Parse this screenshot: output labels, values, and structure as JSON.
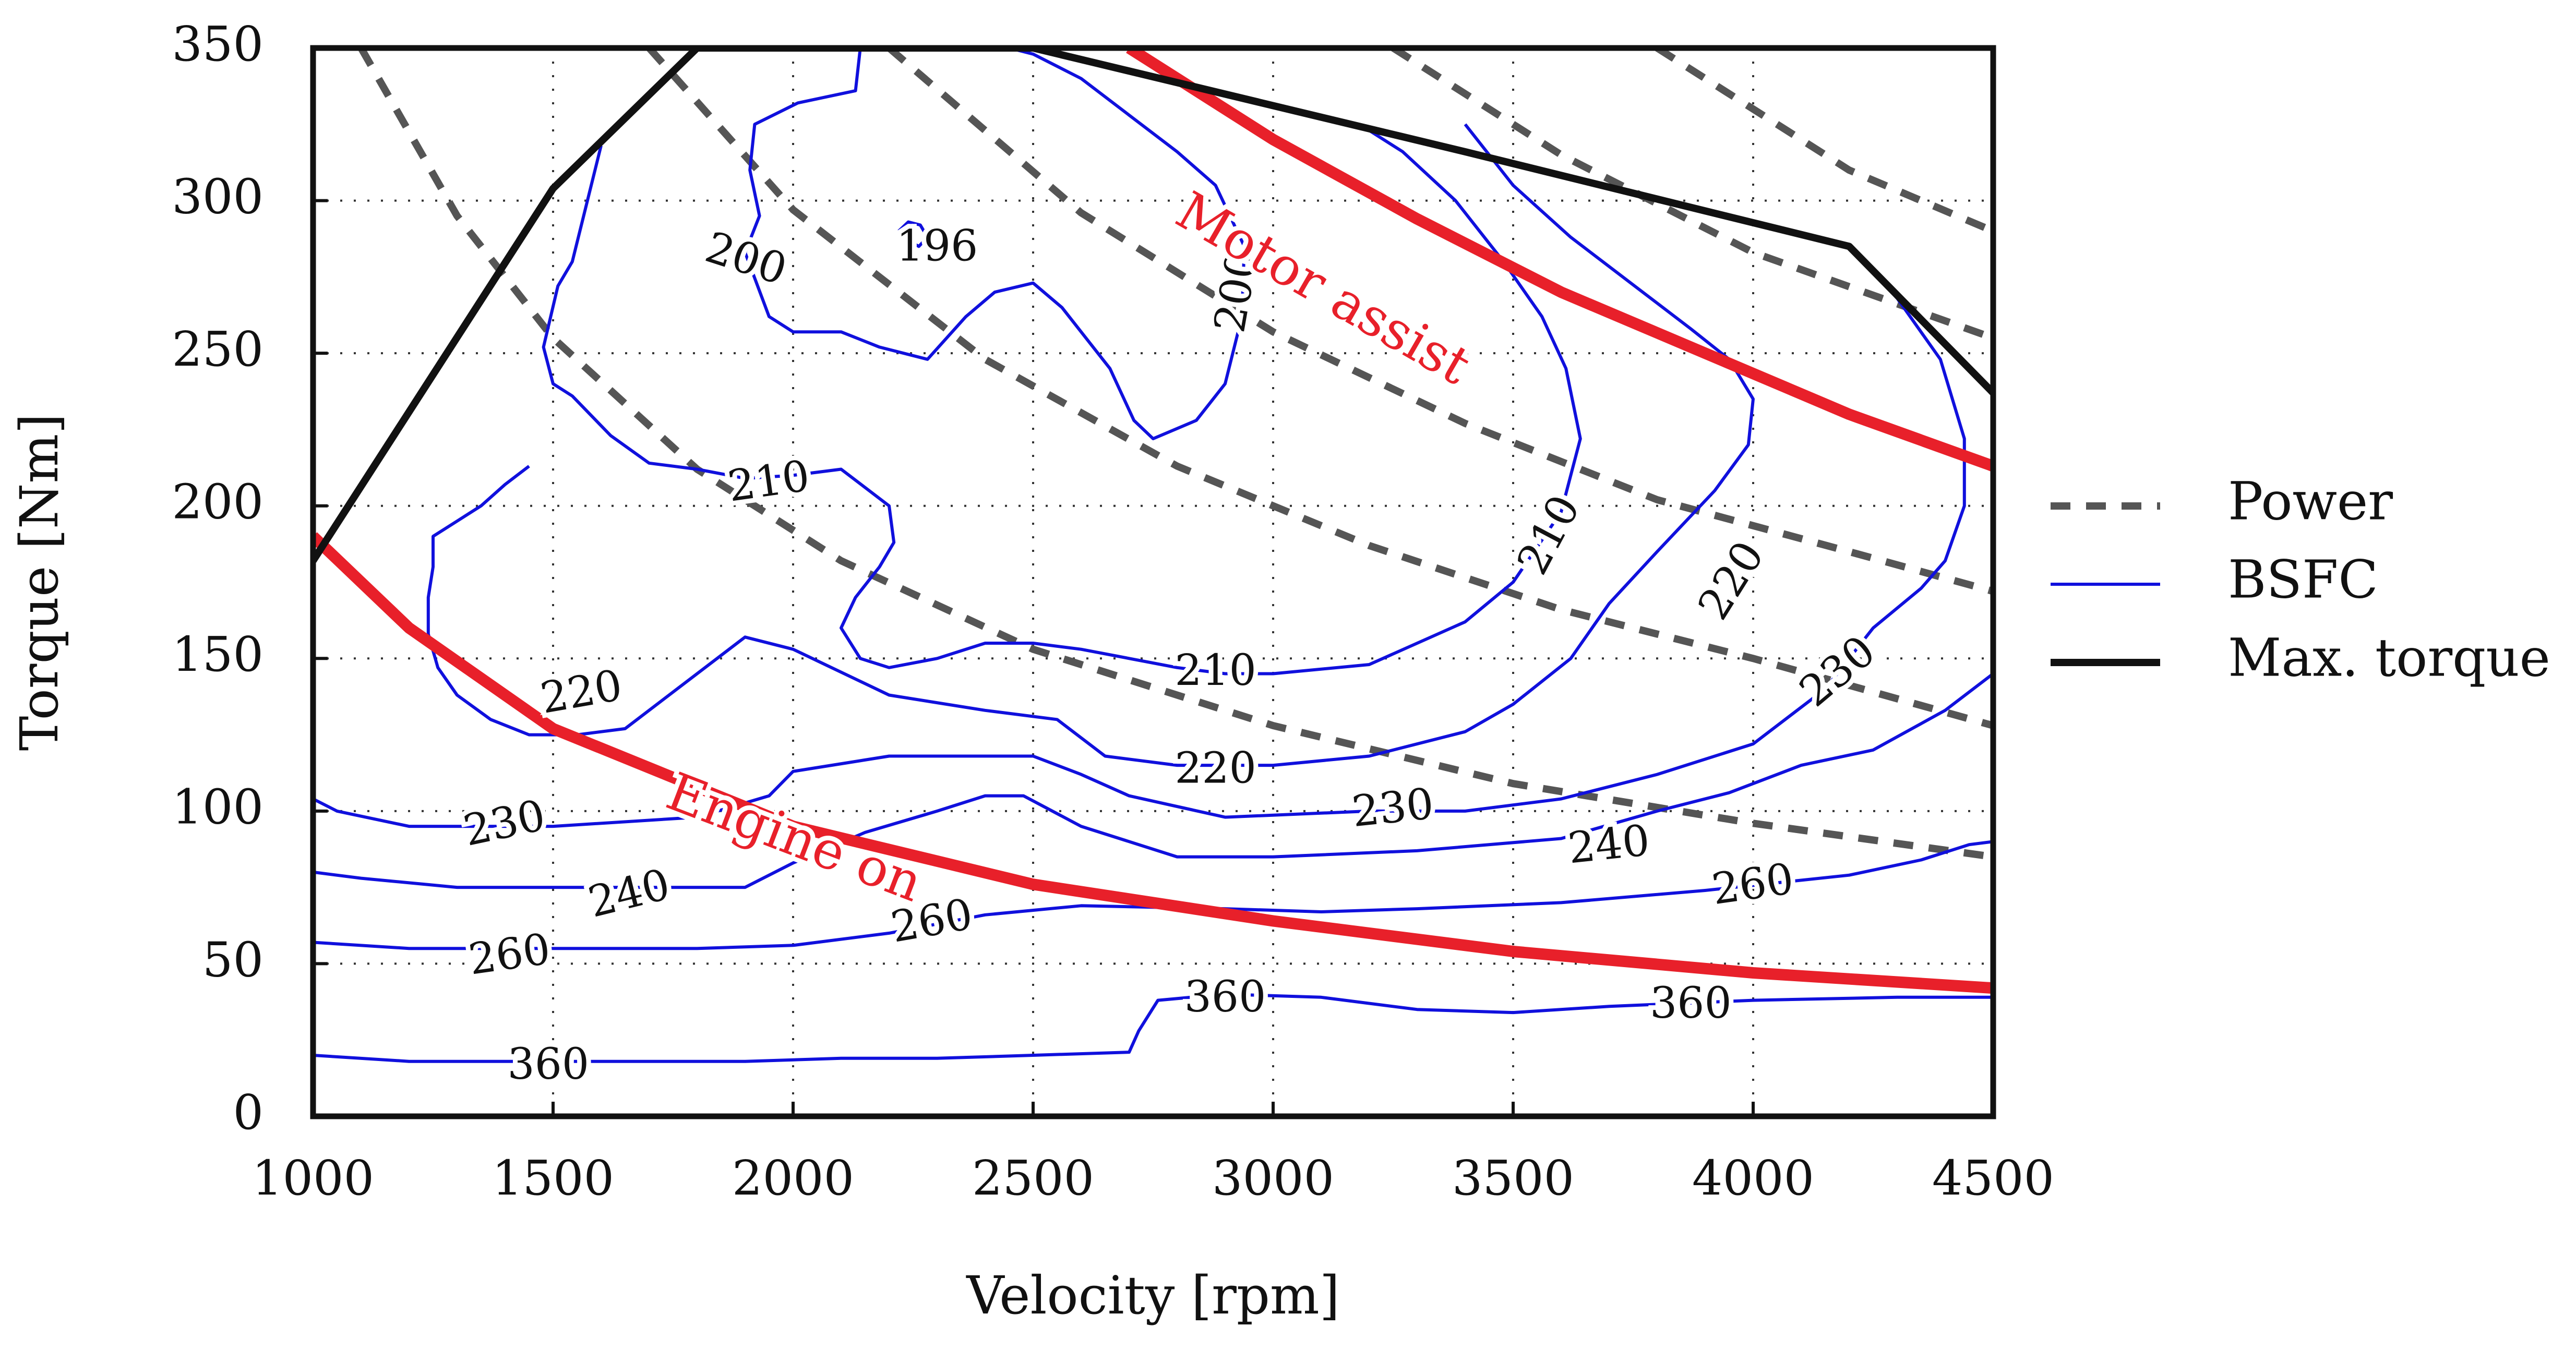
{
  "chart_data": {
    "type": "line",
    "xlabel": "Velocity [rpm]",
    "ylabel": "Torque [Nm]",
    "xlim": [
      1000,
      4500
    ],
    "ylim": [
      0,
      350
    ],
    "xticks": [
      "1000",
      "1500",
      "2000",
      "2500",
      "3000",
      "3500",
      "4000",
      "4500"
    ],
    "yticks": [
      "0",
      "50",
      "100",
      "150",
      "200",
      "250",
      "300",
      "350"
    ],
    "grid": true,
    "legend_position": "right",
    "legend": [
      {
        "label": "Power",
        "style": "dashed",
        "color": "#555555"
      },
      {
        "label": "BSFC",
        "style": "solid",
        "color": "#1010dd"
      },
      {
        "label": "Max. torque",
        "style": "solid",
        "color": "#111111"
      }
    ],
    "colors": {
      "power": "#555555",
      "bsfc": "#1010dd",
      "max_torque": "#111111",
      "strategy": "#e8202a"
    },
    "max_torque": [
      [
        1000,
        182
      ],
      [
        1500,
        304
      ],
      [
        1800,
        350
      ],
      [
        2500,
        350
      ],
      [
        3400,
        316
      ],
      [
        4200,
        285
      ],
      [
        4500,
        237
      ]
    ],
    "strategy_curves": [
      {
        "label": "Motor assist",
        "points": [
          [
            2700,
            350
          ],
          [
            3000,
            320
          ],
          [
            3300,
            294
          ],
          [
            3600,
            270
          ],
          [
            3900,
            250
          ],
          [
            4200,
            230
          ],
          [
            4500,
            213
          ]
        ]
      },
      {
        "label": "Engine on",
        "points": [
          [
            1000,
            190
          ],
          [
            1200,
            160
          ],
          [
            1500,
            127
          ],
          [
            2000,
            95
          ],
          [
            2500,
            76
          ],
          [
            3000,
            64
          ],
          [
            3500,
            54
          ],
          [
            4000,
            47
          ],
          [
            4500,
            42
          ]
        ]
      }
    ],
    "power_curves": [
      [
        [
          1100,
          350
        ],
        [
          1300,
          295
        ],
        [
          1500,
          255
        ],
        [
          1800,
          212
        ],
        [
          2100,
          182
        ],
        [
          2500,
          153
        ],
        [
          3000,
          128
        ],
        [
          3500,
          109
        ],
        [
          4000,
          96
        ],
        [
          4500,
          85
        ]
      ],
      [
        [
          1700,
          350
        ],
        [
          2000,
          297
        ],
        [
          2400,
          248
        ],
        [
          2800,
          213
        ],
        [
          3200,
          187
        ],
        [
          3600,
          166
        ],
        [
          4000,
          150
        ],
        [
          4500,
          128
        ]
      ],
      [
        [
          2200,
          350
        ],
        [
          2600,
          296
        ],
        [
          3000,
          257
        ],
        [
          3400,
          227
        ],
        [
          3800,
          202
        ],
        [
          4200,
          185
        ],
        [
          4500,
          172
        ]
      ],
      [
        [
          3250,
          350
        ],
        [
          3600,
          315
        ],
        [
          4000,
          283
        ],
        [
          4500,
          255
        ]
      ],
      [
        [
          3800,
          350
        ],
        [
          4200,
          310
        ],
        [
          4500,
          290
        ]
      ]
    ],
    "bsfc_contours": [
      {
        "label": "196",
        "label_at": [
          2300,
          284
        ],
        "points": [
          [
            2220,
            290
          ],
          [
            2240,
            293
          ],
          [
            2265,
            292
          ],
          [
            2280,
            288
          ],
          [
            2262,
            285
          ],
          [
            2238,
            287
          ],
          [
            2220,
            290
          ]
        ]
      },
      {
        "label": "200",
        "label_at": [
          1900,
          280
        ],
        "points": [
          [
            2140,
            350
          ],
          [
            2130,
            336
          ],
          [
            2010,
            332
          ],
          [
            1920,
            325
          ],
          [
            1910,
            310
          ],
          [
            1930,
            295
          ],
          [
            1900,
            283
          ],
          [
            1950,
            262
          ],
          [
            2000,
            257
          ],
          [
            2100,
            257
          ],
          [
            2180,
            252
          ],
          [
            2280,
            248
          ],
          [
            2360,
            262
          ],
          [
            2420,
            270
          ],
          [
            2500,
            273
          ],
          [
            2560,
            265
          ],
          [
            2660,
            245
          ],
          [
            2710,
            228
          ],
          [
            2750,
            222
          ],
          [
            2840,
            228
          ],
          [
            2900,
            240
          ],
          [
            2935,
            262
          ],
          [
            2940,
            285
          ],
          [
            2880,
            305
          ],
          [
            2800,
            316
          ],
          [
            2700,
            328
          ],
          [
            2600,
            340
          ],
          [
            2500,
            348
          ],
          [
            2450,
            350
          ]
        ]
      },
      {
        "label": "210",
        "label_at": [
          2000,
          205
        ],
        "points": [
          [
            1600,
            318
          ],
          [
            1540,
            280
          ],
          [
            1510,
            272
          ],
          [
            1480,
            252
          ],
          [
            1500,
            240
          ],
          [
            1520,
            238
          ],
          [
            1540,
            236
          ],
          [
            1620,
            223
          ],
          [
            1700,
            214
          ],
          [
            1800,
            212
          ],
          [
            1900,
            209
          ],
          [
            2000,
            210
          ],
          [
            2100,
            212
          ],
          [
            2200,
            200
          ],
          [
            2210,
            188
          ],
          [
            2180,
            180
          ],
          [
            2130,
            170
          ],
          [
            2100,
            160
          ],
          [
            2140,
            150
          ],
          [
            2200,
            147
          ],
          [
            2300,
            150
          ],
          [
            2400,
            155
          ],
          [
            2500,
            155
          ],
          [
            2600,
            153
          ],
          [
            2800,
            147
          ],
          [
            2900,
            145
          ],
          [
            3000,
            145
          ],
          [
            3200,
            148
          ],
          [
            3400,
            162
          ],
          [
            3500,
            175
          ],
          [
            3600,
            198
          ],
          [
            3640,
            222
          ],
          [
            3610,
            245
          ],
          [
            3560,
            262
          ],
          [
            3480,
            280
          ],
          [
            3380,
            300
          ],
          [
            3270,
            316
          ],
          [
            3180,
            325
          ]
        ]
      },
      {
        "label": "220",
        "label_at": [
          1700,
          138
        ],
        "points": [
          [
            1450,
            213
          ],
          [
            1400,
            207
          ],
          [
            1350,
            200
          ],
          [
            1300,
            195
          ],
          [
            1250,
            190
          ],
          [
            1250,
            180
          ],
          [
            1240,
            170
          ],
          [
            1240,
            158
          ],
          [
            1260,
            147
          ],
          [
            1300,
            138
          ],
          [
            1370,
            130
          ],
          [
            1450,
            125
          ],
          [
            1550,
            125
          ],
          [
            1650,
            127
          ],
          [
            1800,
            145
          ],
          [
            1900,
            157
          ],
          [
            2000,
            153
          ],
          [
            2200,
            138
          ],
          [
            2400,
            133
          ],
          [
            2550,
            130
          ],
          [
            2650,
            118
          ],
          [
            2800,
            115
          ],
          [
            3000,
            115
          ],
          [
            3200,
            118
          ],
          [
            3400,
            126
          ],
          [
            3500,
            135
          ],
          [
            3620,
            150
          ],
          [
            3700,
            168
          ],
          [
            3800,
            185
          ],
          [
            3920,
            205
          ],
          [
            3990,
            220
          ],
          [
            4000,
            235
          ],
          [
            3950,
            248
          ],
          [
            3870,
            258
          ],
          [
            3770,
            270
          ],
          [
            3620,
            288
          ],
          [
            3500,
            305
          ],
          [
            3400,
            325
          ]
        ]
      },
      {
        "label": "230",
        "label_at": [
          3250,
          100
        ],
        "points": [
          [
            1000,
            104
          ],
          [
            1050,
            100
          ],
          [
            1200,
            95
          ],
          [
            1500,
            95
          ],
          [
            1800,
            98
          ],
          [
            1950,
            105
          ],
          [
            2000,
            113
          ],
          [
            2200,
            118
          ],
          [
            2500,
            118
          ],
          [
            2600,
            112
          ],
          [
            2700,
            105
          ],
          [
            2900,
            98
          ],
          [
            3200,
            100
          ],
          [
            3400,
            100
          ],
          [
            3600,
            104
          ],
          [
            3800,
            112
          ],
          [
            4000,
            122
          ],
          [
            4150,
            140
          ],
          [
            4250,
            160
          ],
          [
            4350,
            173
          ],
          [
            4400,
            182
          ],
          [
            4440,
            200
          ],
          [
            4440,
            222
          ],
          [
            4390,
            248
          ],
          [
            4300,
            268
          ],
          [
            4200,
            285
          ]
        ]
      },
      {
        "label": "240",
        "label_at": [
          1700,
          75
        ],
        "points": [
          [
            1000,
            80
          ],
          [
            1100,
            78
          ],
          [
            1300,
            75
          ],
          [
            1600,
            75
          ],
          [
            1900,
            75
          ],
          [
            2000,
            83
          ],
          [
            2150,
            93
          ],
          [
            2300,
            100
          ],
          [
            2400,
            105
          ],
          [
            2480,
            105
          ],
          [
            2600,
            95
          ],
          [
            2800,
            85
          ],
          [
            3000,
            85
          ],
          [
            3300,
            87
          ],
          [
            3600,
            91
          ],
          [
            3800,
            100
          ],
          [
            3950,
            106
          ],
          [
            4100,
            115
          ],
          [
            4250,
            120
          ],
          [
            4400,
            133
          ],
          [
            4500,
            145
          ]
        ]
      },
      {
        "label": "260",
        "label_at": [
          2300,
          62
        ],
        "points": [
          [
            1000,
            57
          ],
          [
            1200,
            55
          ],
          [
            1500,
            55
          ],
          [
            1800,
            55
          ],
          [
            2000,
            56
          ],
          [
            2200,
            60
          ],
          [
            2400,
            66
          ],
          [
            2600,
            69
          ],
          [
            2900,
            68
          ],
          [
            3100,
            67
          ],
          [
            3300,
            68
          ],
          [
            3600,
            70
          ],
          [
            3900,
            74
          ],
          [
            4200,
            79
          ],
          [
            4350,
            84
          ],
          [
            4450,
            89
          ],
          [
            4500,
            90
          ]
        ]
      },
      {
        "label": "360",
        "label_at": [
          2900,
          38
        ],
        "points": [
          [
            1000,
            20
          ],
          [
            1200,
            18
          ],
          [
            1500,
            18
          ],
          [
            1900,
            18
          ],
          [
            2100,
            19
          ],
          [
            2300,
            19
          ],
          [
            2500,
            20
          ],
          [
            2700,
            21
          ],
          [
            2720,
            28
          ],
          [
            2760,
            38
          ],
          [
            2900,
            40
          ],
          [
            3100,
            39
          ],
          [
            3300,
            35
          ],
          [
            3500,
            34
          ],
          [
            3700,
            36
          ],
          [
            4000,
            38
          ],
          [
            4300,
            39
          ],
          [
            4500,
            39
          ]
        ]
      }
    ],
    "bsfc_labels": [
      {
        "text": "196",
        "at": [
          2300,
          284
        ],
        "angle": 0
      },
      {
        "text": "200",
        "at": [
          1900,
          280
        ],
        "angle": 18
      },
      {
        "text": "200",
        "at": [
          2930,
          270
        ],
        "angle": -80
      },
      {
        "text": "210",
        "at": [
          1950,
          207
        ],
        "angle": -8
      },
      {
        "text": "210",
        "at": [
          2880,
          145
        ],
        "angle": 0
      },
      {
        "text": "210",
        "at": [
          3580,
          190
        ],
        "angle": -62
      },
      {
        "text": "220",
        "at": [
          1560,
          138
        ],
        "angle": -10
      },
      {
        "text": "220",
        "at": [
          2880,
          113
        ],
        "angle": 0
      },
      {
        "text": "220",
        "at": [
          3960,
          175
        ],
        "angle": -58
      },
      {
        "text": "230",
        "at": [
          1400,
          95
        ],
        "angle": -12
      },
      {
        "text": "230",
        "at": [
          3250,
          100
        ],
        "angle": -6
      },
      {
        "text": "230",
        "at": [
          4180,
          145
        ],
        "angle": -40
      },
      {
        "text": "240",
        "at": [
          1660,
          72
        ],
        "angle": -14
      },
      {
        "text": "240",
        "at": [
          3700,
          88
        ],
        "angle": -6
      },
      {
        "text": "260",
        "at": [
          1410,
          52
        ],
        "angle": -8
      },
      {
        "text": "260",
        "at": [
          2290,
          63
        ],
        "angle": -10
      },
      {
        "text": "260",
        "at": [
          4000,
          75
        ],
        "angle": -8
      },
      {
        "text": "360",
        "at": [
          1490,
          16
        ],
        "angle": 0
      },
      {
        "text": "360",
        "at": [
          2900,
          38
        ],
        "angle": 0
      },
      {
        "text": "360",
        "at": [
          3870,
          36
        ],
        "angle": 0
      }
    ],
    "region_labels": [
      {
        "text": "Motor assist",
        "at": [
          3100,
          270
        ],
        "angle": 30
      },
      {
        "text": "Engine on",
        "at": [
          2000,
          90
        ],
        "angle": 21
      }
    ]
  }
}
